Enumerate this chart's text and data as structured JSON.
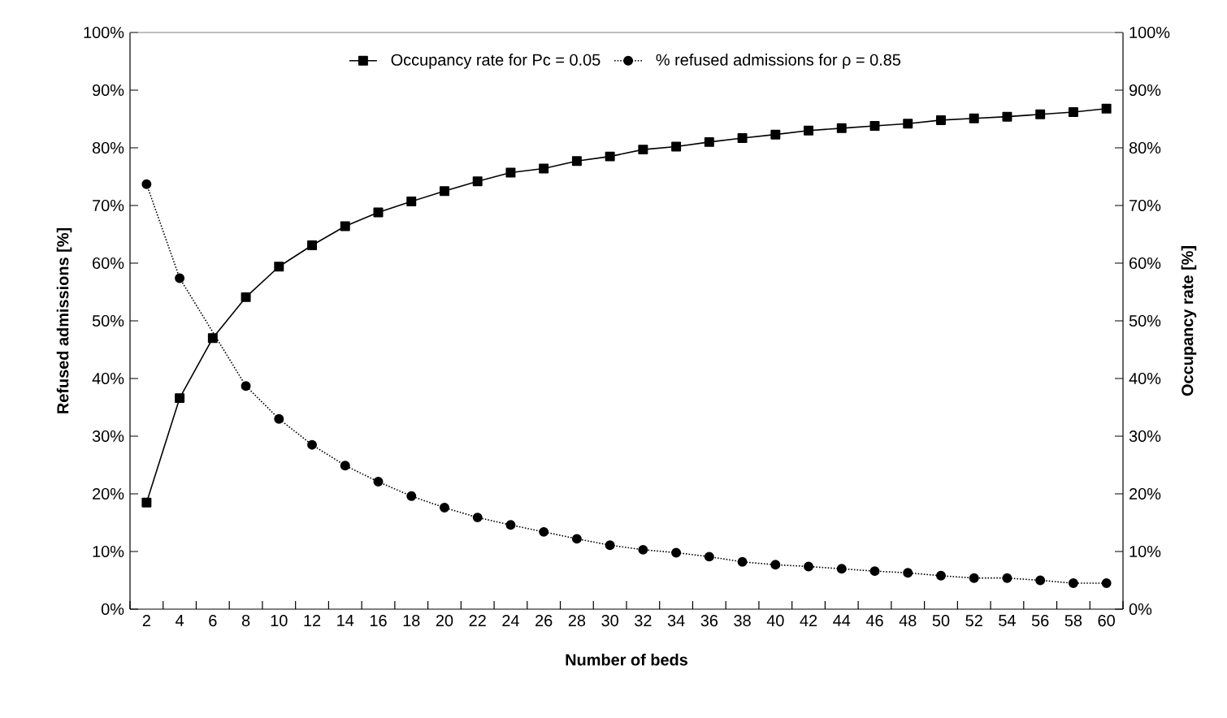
{
  "chart_data": {
    "type": "line",
    "xlabel": "Number of beds",
    "ylabel": "Refused admissions [%]",
    "y2label": "Occupancy rate [%]",
    "categories": [
      "2",
      "4",
      "6",
      "8",
      "10",
      "12",
      "14",
      "16",
      "18",
      "20",
      "22",
      "24",
      "26",
      "28",
      "30",
      "32",
      "34",
      "36",
      "38",
      "40",
      "42",
      "44",
      "46",
      "48",
      "50",
      "52",
      "54",
      "56",
      "58",
      "60"
    ],
    "series": [
      {
        "name": "Occupancy rate for Pc = 0.05",
        "color": "#000000",
        "axis": "y2",
        "marker": "square",
        "line_style": "solid",
        "values": [
          18.5,
          36.6,
          47.0,
          54.1,
          59.4,
          63.1,
          66.4,
          68.8,
          70.7,
          72.5,
          74.2,
          75.7,
          76.4,
          77.7,
          78.5,
          79.7,
          80.2,
          81.0,
          81.7,
          82.3,
          83.0,
          83.4,
          83.8,
          84.2,
          84.8,
          85.1,
          85.4,
          85.8,
          86.2,
          86.8
        ]
      },
      {
        "name": "% refused admissions for ρ = 0.85",
        "color": "#000000",
        "axis": "y",
        "marker": "circle",
        "line_style": "dotted",
        "values": [
          73.7,
          57.4,
          null,
          38.7,
          33.0,
          28.5,
          24.9,
          22.1,
          19.6,
          17.6,
          15.9,
          14.6,
          13.4,
          12.2,
          11.1,
          10.3,
          9.8,
          9.1,
          8.2,
          7.7,
          7.4,
          7.0,
          6.6,
          6.3,
          5.8,
          5.4,
          5.4,
          5.0,
          4.5,
          4.5
        ]
      }
    ],
    "ylim": [
      0,
      100
    ],
    "yticks": [
      {
        "value": 0,
        "label": "0%"
      },
      {
        "value": 10,
        "label": "10%"
      },
      {
        "value": 20,
        "label": "20%"
      },
      {
        "value": 30,
        "label": "30%"
      },
      {
        "value": 40,
        "label": "40%"
      },
      {
        "value": 50,
        "label": "50%"
      },
      {
        "value": 60,
        "label": "60%"
      },
      {
        "value": 70,
        "label": "70%"
      },
      {
        "value": 80,
        "label": "80%"
      },
      {
        "value": 90,
        "label": "90%"
      },
      {
        "value": 100,
        "label": "100%"
      }
    ],
    "y2lim": [
      0,
      100
    ],
    "y2ticks": [
      {
        "value": 0,
        "label": "0%"
      },
      {
        "value": 10,
        "label": "10%"
      },
      {
        "value": 20,
        "label": "20%"
      },
      {
        "value": 30,
        "label": "30%"
      },
      {
        "value": 40,
        "label": "40%"
      },
      {
        "value": 50,
        "label": "50%"
      },
      {
        "value": 60,
        "label": "60%"
      },
      {
        "value": 70,
        "label": "70%"
      },
      {
        "value": 80,
        "label": "80%"
      },
      {
        "value": 90,
        "label": "90%"
      },
      {
        "value": 100,
        "label": "100%"
      }
    ],
    "grid": false,
    "legend": "top"
  }
}
